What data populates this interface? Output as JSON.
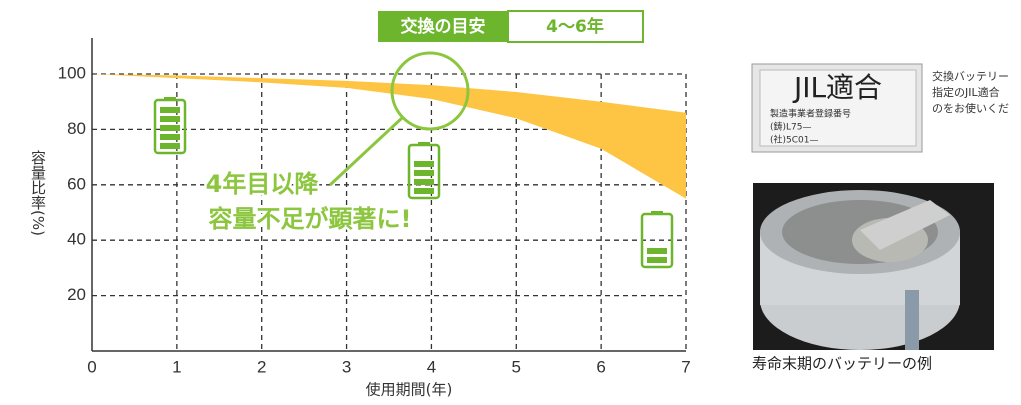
{
  "chart_data": {
    "type": "band",
    "x": [
      0,
      1,
      2,
      3,
      4,
      5,
      6,
      7
    ],
    "upper": [
      100,
      99.5,
      98.5,
      97.5,
      96,
      93.5,
      90,
      86
    ],
    "lower": [
      100,
      98.5,
      97,
      95,
      91,
      84,
      73,
      55
    ],
    "color": "#fdc543",
    "xlim": [
      0,
      7
    ],
    "ylim": [
      0,
      113
    ],
    "xticks": [
      0,
      1,
      2,
      3,
      4,
      5,
      6,
      7
    ],
    "yticks": [
      20,
      40,
      60,
      80,
      100
    ],
    "grid": true,
    "xlabel": "使用期間(年)",
    "ylabel": "容量比率(%)",
    "badge": {
      "label": "交換の目安",
      "value": "4〜6年"
    },
    "annotation": [
      "4年目以降",
      "容量不足が顕著に!"
    ]
  },
  "side": {
    "note": [
      "交換バッテリー",
      "指定のJIL適合",
      "のをお使いくだ"
    ],
    "label_image": {
      "title": "JIL適合",
      "lines": [
        "製造事業者登録番号",
        "(鋳)L75—",
        "(社)5C01—"
      ]
    },
    "caption": "寿命末期のバッテリーの例"
  }
}
